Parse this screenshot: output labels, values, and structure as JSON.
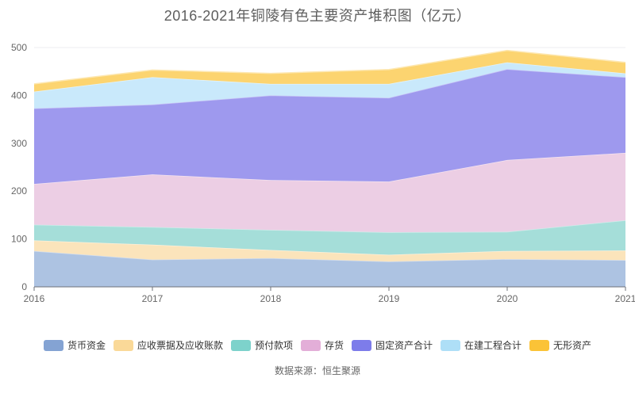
{
  "title": "2016-2021年铜陵有色主要资产堆积图（亿元）",
  "footer": "数据来源：恒生聚源",
  "chart_data": {
    "type": "area",
    "stacked": true,
    "title": "2016-2021年铜陵有色主要资产堆积图（亿元）",
    "categories": [
      "2016",
      "2017",
      "2018",
      "2019",
      "2020",
      "2021"
    ],
    "series": [
      {
        "name": "货币资金",
        "values": [
          75,
          57,
          60,
          53,
          58,
          56
        ],
        "color": "#84a3d3",
        "fill": "#adc3e2"
      },
      {
        "name": "应收票据及应收账款",
        "values": [
          22,
          31,
          17,
          14,
          17,
          20
        ],
        "color": "#fad998",
        "fill": "#fbe4bb"
      },
      {
        "name": "预付款项",
        "values": [
          33,
          37,
          42,
          47,
          40,
          63
        ],
        "color": "#7dd2cb",
        "fill": "#a5ded9"
      },
      {
        "name": "存货",
        "values": [
          85,
          110,
          104,
          106,
          150,
          141
        ],
        "color": "#e3aed8",
        "fill": "#eccee4"
      },
      {
        "name": "固定资产合计",
        "values": [
          158,
          146,
          177,
          175,
          190,
          158
        ],
        "color": "#7d7cea",
        "fill": "#9e99ee"
      },
      {
        "name": "在建工程合计",
        "values": [
          35,
          57,
          24,
          29,
          14,
          8
        ],
        "color": "#aedff7",
        "fill": "#c9e9fb"
      },
      {
        "name": "无形资产",
        "values": [
          16,
          15,
          22,
          30,
          25,
          23
        ],
        "color": "#fbc337",
        "fill": "#fcd470"
      }
    ],
    "cumulative_totals": [
      424,
      453,
      446,
      454,
      494,
      469
    ],
    "xlabel": "",
    "ylabel": "",
    "ylim": [
      0,
      500
    ],
    "yticks": [
      0,
      100,
      200,
      300,
      400,
      500
    ],
    "grid": true,
    "legend_position": "bottom",
    "axis_color": "#6e7079",
    "grid_color": "#ececf2",
    "tick_label_color": "#666666"
  }
}
